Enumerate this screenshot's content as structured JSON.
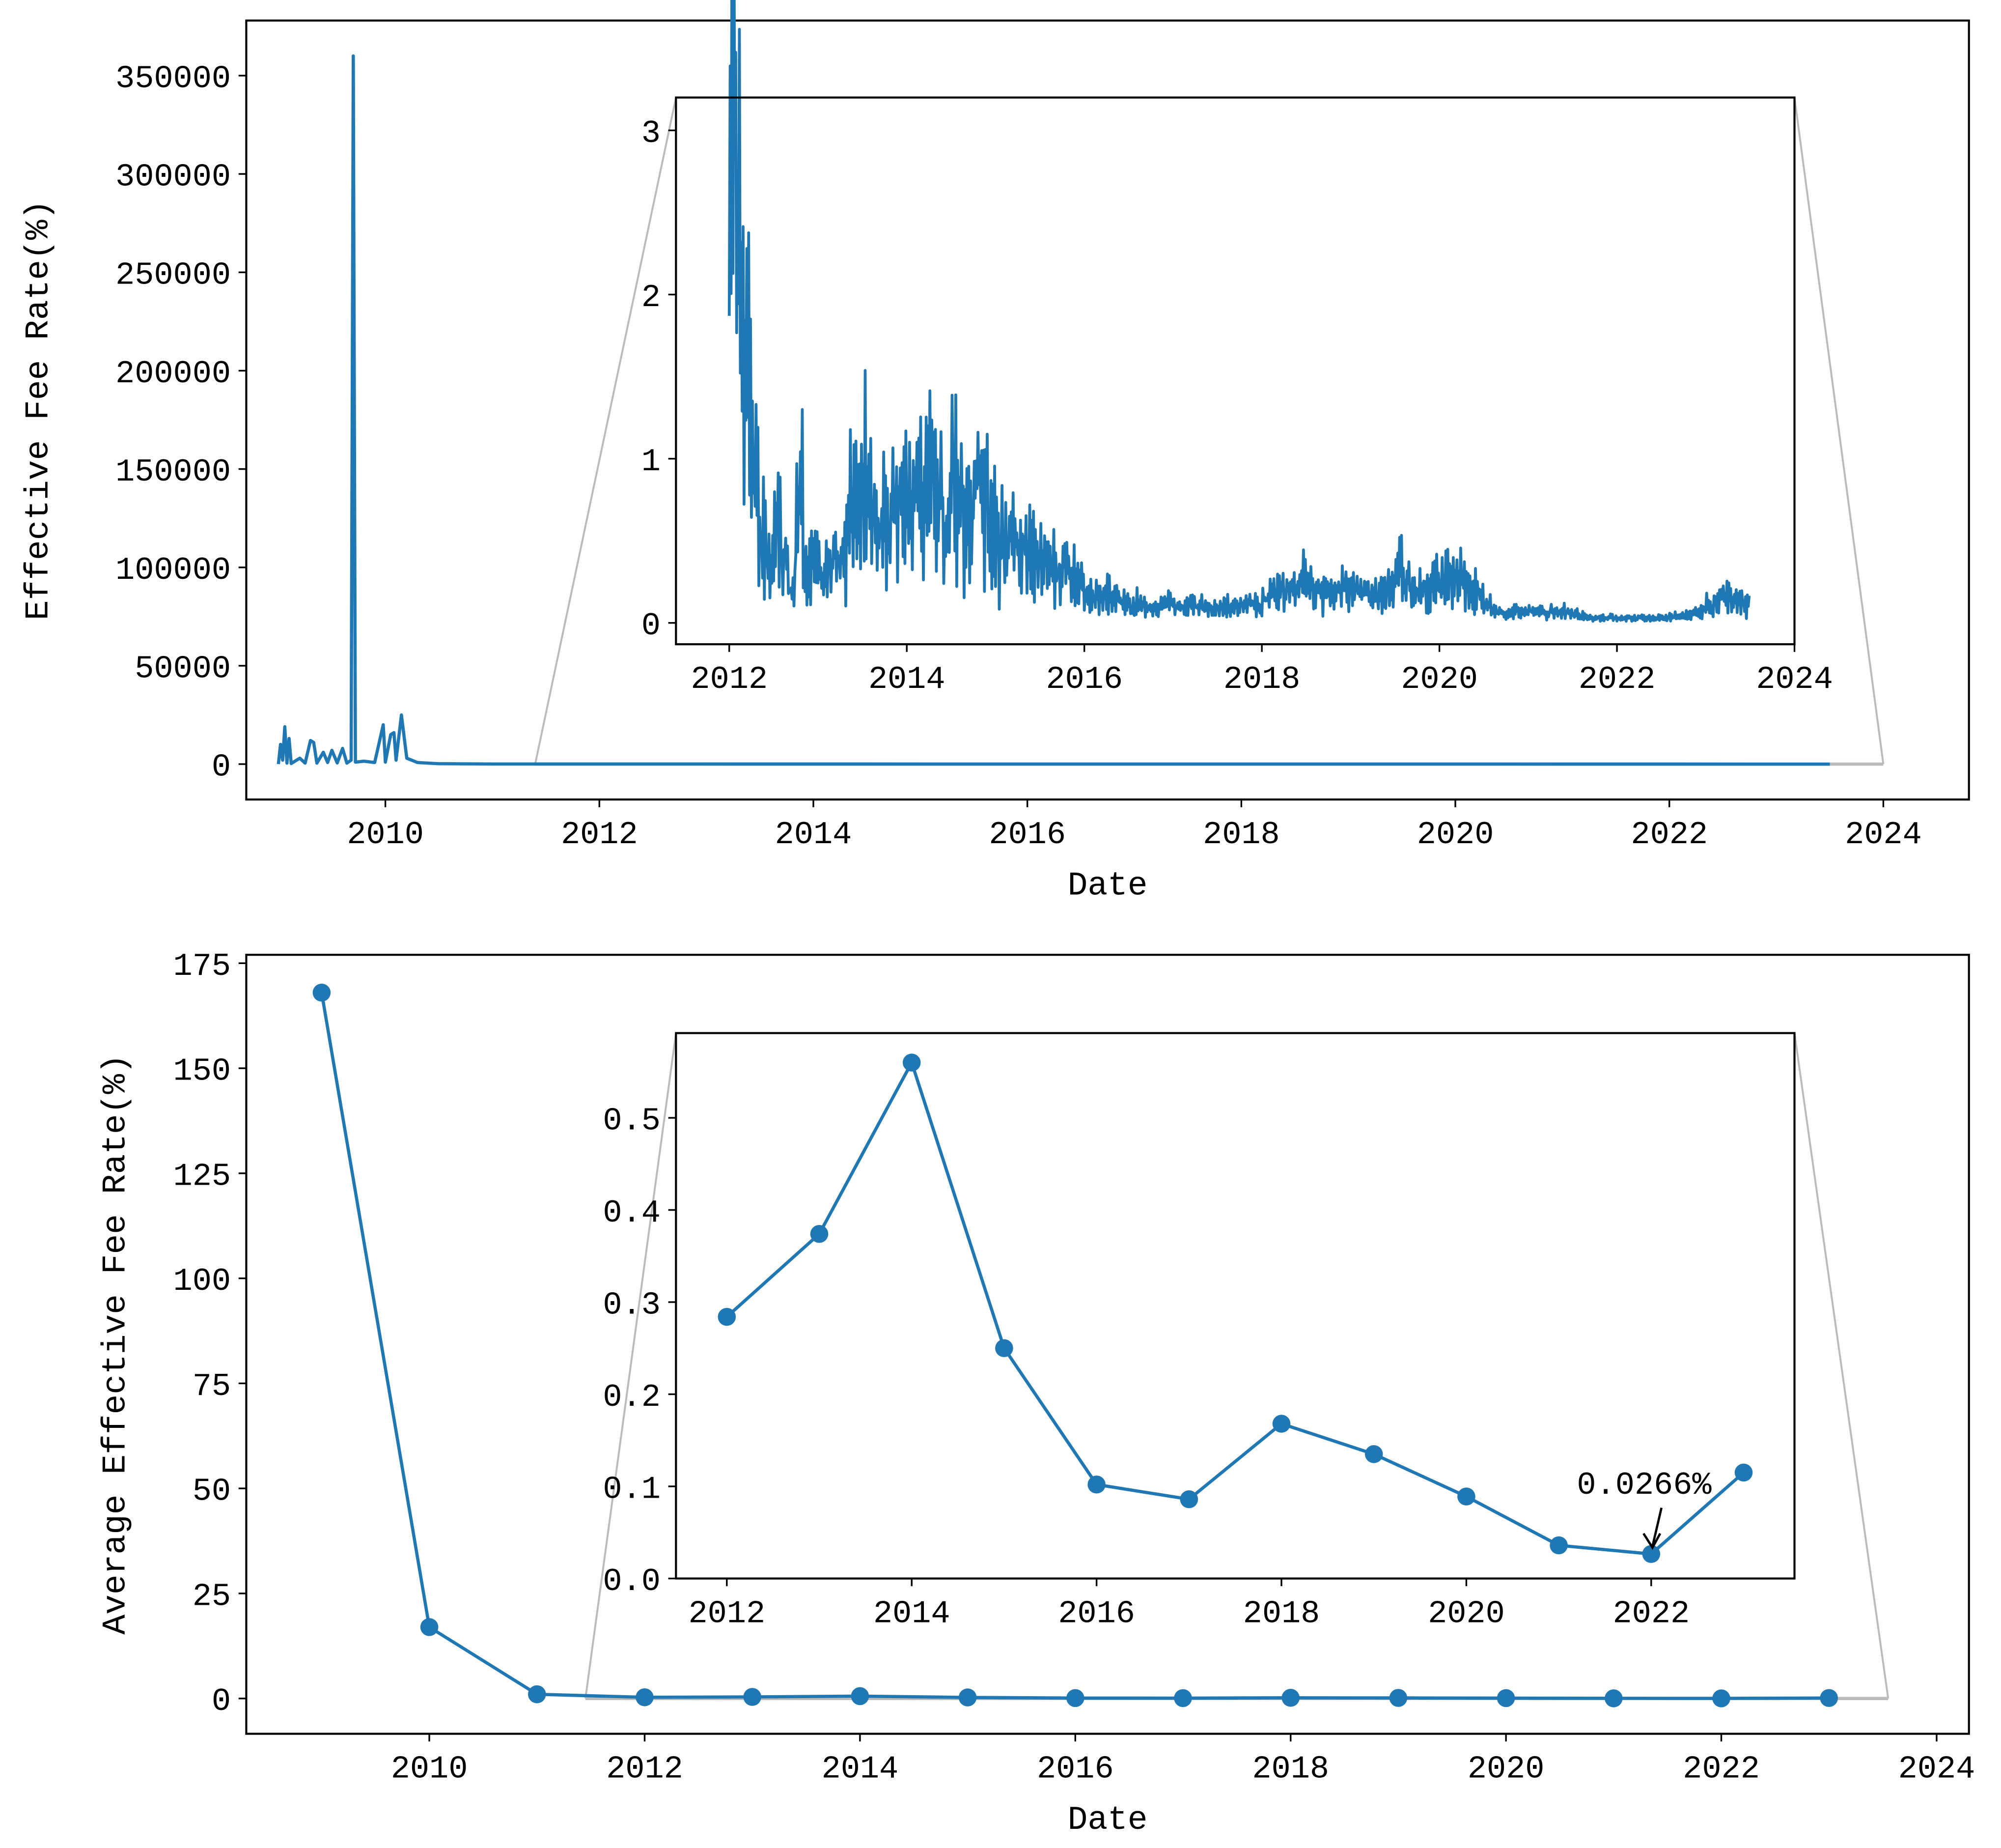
{
  "chart_data": [
    {
      "type": "line",
      "panel": "top-main",
      "xlabel": "Date",
      "ylabel": "Effective Fee Rate(%)",
      "xticks": [
        "2010",
        "2012",
        "2014",
        "2016",
        "2018",
        "2020",
        "2022",
        "2024"
      ],
      "yticks": [
        "0",
        "50000",
        "100000",
        "150000",
        "200000",
        "250000",
        "300000",
        "350000"
      ],
      "xlim": [
        2008.7,
        2024.8
      ],
      "ylim": [
        -18000,
        378000
      ],
      "color": "#1f77b4",
      "points": [
        [
          2009.0,
          0
        ],
        [
          2009.02,
          10000
        ],
        [
          2009.04,
          2000
        ],
        [
          2009.06,
          19000
        ],
        [
          2009.08,
          500
        ],
        [
          2009.1,
          13000
        ],
        [
          2009.12,
          300
        ],
        [
          2009.2,
          3000
        ],
        [
          2009.25,
          500
        ],
        [
          2009.3,
          12000
        ],
        [
          2009.33,
          11000
        ],
        [
          2009.36,
          500
        ],
        [
          2009.42,
          6000
        ],
        [
          2009.46,
          800
        ],
        [
          2009.5,
          7000
        ],
        [
          2009.55,
          600
        ],
        [
          2009.6,
          8000
        ],
        [
          2009.64,
          500
        ],
        [
          2009.68,
          2000
        ],
        [
          2009.7,
          360000
        ],
        [
          2009.72,
          1000
        ],
        [
          2009.8,
          1500
        ],
        [
          2009.9,
          800
        ],
        [
          2009.98,
          20000
        ],
        [
          2010.0,
          1000
        ],
        [
          2010.05,
          15000
        ],
        [
          2010.08,
          16000
        ],
        [
          2010.1,
          2000
        ],
        [
          2010.15,
          25000
        ],
        [
          2010.2,
          3000
        ],
        [
          2010.3,
          800
        ],
        [
          2010.5,
          200
        ],
        [
          2011.0,
          50
        ],
        [
          2023.5,
          0
        ]
      ]
    },
    {
      "type": "line",
      "panel": "top-inset",
      "xticks": [
        "2012",
        "2014",
        "2016",
        "2018",
        "2020",
        "2022",
        "2024"
      ],
      "yticks": [
        "0",
        "1",
        "2",
        "3"
      ],
      "xlim": [
        2011.4,
        2024.0
      ],
      "ylim": [
        -0.13,
        3.2
      ],
      "color": "#1f77b4",
      "start": "2012-01",
      "monthly_values": [
        3.0,
        2.0,
        1.6,
        0.9,
        0.5,
        0.35,
        0.6,
        0.4,
        0.2,
        0.8,
        0.3,
        0.35,
        0.3,
        0.35,
        0.4,
        0.45,
        0.7,
        0.8,
        0.9,
        0.7,
        0.6,
        0.5,
        0.7,
        0.8,
        0.7,
        0.9,
        0.8,
        1.0,
        0.7,
        0.6,
        0.9,
        0.7,
        0.6,
        0.9,
        0.8,
        0.6,
        0.5,
        0.45,
        0.5,
        0.5,
        0.45,
        0.4,
        0.4,
        0.35,
        0.3,
        0.35,
        0.3,
        0.25,
        0.2,
        0.15,
        0.15,
        0.18,
        0.15,
        0.12,
        0.1,
        0.12,
        0.1,
        0.08,
        0.1,
        0.12,
        0.1,
        0.1,
        0.12,
        0.1,
        0.08,
        0.08,
        0.1,
        0.1,
        0.1,
        0.12,
        0.12,
        0.1,
        0.15,
        0.2,
        0.2,
        0.2,
        0.2,
        0.25,
        0.22,
        0.2,
        0.2,
        0.2,
        0.2,
        0.2,
        0.2,
        0.2,
        0.18,
        0.15,
        0.2,
        0.25,
        0.3,
        0.25,
        0.2,
        0.2,
        0.2,
        0.25,
        0.25,
        0.3,
        0.3,
        0.25,
        0.2,
        0.2,
        0.1,
        0.07,
        0.06,
        0.06,
        0.07,
        0.07,
        0.07,
        0.07,
        0.06,
        0.08,
        0.07,
        0.06,
        0.05,
        0.04,
        0.03,
        0.03,
        0.03,
        0.03,
        0.03,
        0.03,
        0.03,
        0.03,
        0.03,
        0.03,
        0.03,
        0.04,
        0.04,
        0.05,
        0.06,
        0.08,
        0.1,
        0.13,
        0.15,
        0.15,
        0.13,
        0.12
      ]
    },
    {
      "type": "line",
      "panel": "bottom-main",
      "xlabel": "Date",
      "ylabel": "Average Effective Fee Rate(%)",
      "xticks": [
        "2010",
        "2012",
        "2014",
        "2016",
        "2018",
        "2020",
        "2022",
        "2024"
      ],
      "yticks": [
        "0",
        "25",
        "50",
        "75",
        "100",
        "125",
        "150",
        "175"
      ],
      "xlim": [
        2008.3,
        2024.3
      ],
      "ylim": [
        -8.4,
        177
      ],
      "color": "#1f77b4",
      "x": [
        2009,
        2010,
        2011,
        2012,
        2013,
        2014,
        2015,
        2016,
        2017,
        2018,
        2019,
        2020,
        2021,
        2022,
        2023
      ],
      "y": [
        168,
        17,
        1.0,
        0.284,
        0.374,
        0.56,
        0.25,
        0.102,
        0.086,
        0.168,
        0.135,
        0.089,
        0.036,
        0.0266,
        0.115
      ]
    },
    {
      "type": "line",
      "panel": "bottom-inset",
      "xticks": [
        "2012",
        "2014",
        "2016",
        "2018",
        "2020",
        "2022"
      ],
      "yticks": [
        "0.0",
        "0.1",
        "0.2",
        "0.3",
        "0.4",
        "0.5"
      ],
      "xlim": [
        2011.45,
        2023.55
      ],
      "ylim": [
        0,
        0.592
      ],
      "color": "#1f77b4",
      "x": [
        2012,
        2013,
        2014,
        2015,
        2016,
        2017,
        2018,
        2019,
        2020,
        2021,
        2022,
        2023
      ],
      "y": [
        0.284,
        0.374,
        0.56,
        0.25,
        0.102,
        0.086,
        0.168,
        0.135,
        0.089,
        0.036,
        0.0266,
        0.115
      ],
      "annotation": {
        "text": "0.0266%",
        "x": 2022,
        "y": 0.0266
      }
    }
  ]
}
